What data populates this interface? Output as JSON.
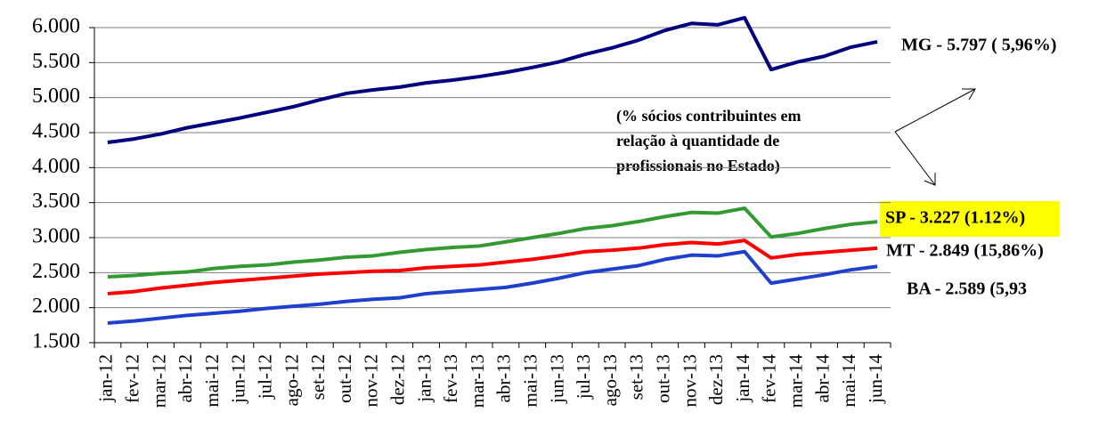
{
  "chart_data": {
    "type": "line",
    "categories": [
      "jan-12",
      "fev-12",
      "mar-12",
      "abr-12",
      "mai-12",
      "jun-12",
      "jul-12",
      "ago-12",
      "set-12",
      "out-12",
      "nov-12",
      "dez-12",
      "jan-13",
      "fev-13",
      "mar-13",
      "abr-13",
      "mai-13",
      "jun-13",
      "jul-13",
      "ago-13",
      "set-13",
      "out-13",
      "nov-13",
      "dez-13",
      "jan-14",
      "fev-14",
      "mar-14",
      "abr-14",
      "mai-14",
      "jun-14"
    ],
    "series": [
      {
        "name": "MG - 5.797 ( 5,96%)",
        "color": "#00007f",
        "values": [
          4360,
          4410,
          4480,
          4570,
          4640,
          4710,
          4790,
          4870,
          4970,
          5060,
          5110,
          5150,
          5210,
          5250,
          5300,
          5360,
          5430,
          5510,
          5620,
          5710,
          5820,
          5960,
          6060,
          6040,
          6140,
          5400,
          5510,
          5590,
          5720,
          5797
        ]
      },
      {
        "name": "SP - 3.227 (1.12%)",
        "color": "#339933",
        "values": [
          2440,
          2460,
          2490,
          2510,
          2560,
          2590,
          2610,
          2650,
          2680,
          2720,
          2740,
          2790,
          2830,
          2860,
          2880,
          2940,
          3000,
          3060,
          3130,
          3170,
          3230,
          3300,
          3360,
          3350,
          3420,
          3010,
          3060,
          3130,
          3190,
          3227
        ]
      },
      {
        "name": "MT - 2.849 (15,86%)",
        "color": "#ff0000",
        "values": [
          2200,
          2230,
          2280,
          2320,
          2360,
          2390,
          2420,
          2450,
          2480,
          2500,
          2520,
          2530,
          2570,
          2590,
          2610,
          2650,
          2690,
          2740,
          2800,
          2820,
          2850,
          2900,
          2930,
          2910,
          2960,
          2710,
          2760,
          2790,
          2820,
          2849
        ]
      },
      {
        "name": "BA - 2.589 (5,93",
        "color": "#1f3fcf",
        "values": [
          1780,
          1810,
          1850,
          1890,
          1920,
          1950,
          1990,
          2020,
          2050,
          2090,
          2120,
          2140,
          2200,
          2230,
          2260,
          2290,
          2350,
          2420,
          2500,
          2550,
          2600,
          2690,
          2750,
          2740,
          2800,
          2350,
          2410,
          2470,
          2540,
          2589
        ]
      }
    ],
    "annotation": [
      "(% sócios contribuintes em",
      "relação à quantidade de",
      "profissionais no Estado)"
    ],
    "ylim": [
      1500,
      6000
    ],
    "yticks": [
      {
        "value": 1500,
        "label": "1.500"
      },
      {
        "value": 2000,
        "label": "2.000"
      },
      {
        "value": 2500,
        "label": "2.500"
      },
      {
        "value": 3000,
        "label": "3.000"
      },
      {
        "value": 3500,
        "label": "3.500"
      },
      {
        "value": 4000,
        "label": "4.000"
      },
      {
        "value": 4500,
        "label": "4.500"
      },
      {
        "value": 5000,
        "label": "5.000"
      },
      {
        "value": 5500,
        "label": "5.500"
      },
      {
        "value": 6000,
        "label": "6.000"
      }
    ],
    "grid": true
  }
}
